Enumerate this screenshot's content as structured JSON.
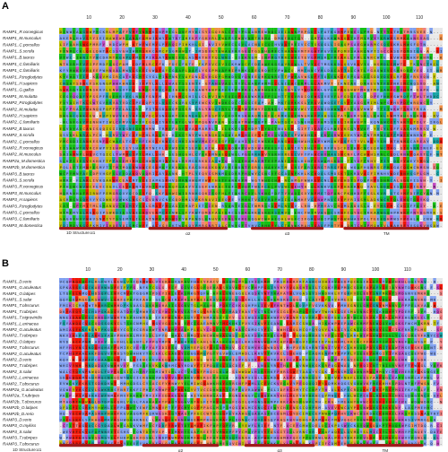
{
  "panels": [
    {
      "id": "A",
      "letter": "A",
      "ticks": [
        "10",
        "20",
        "30",
        "40",
        "50",
        "60",
        "70",
        "80",
        "90",
        "100",
        "110"
      ],
      "rows": [
        "RAMP1_R.norvegicus",
        "RAMP1_M.musculus",
        "RAMP1_C.porcellus",
        "RAMP1_S.scrofa",
        "RAMP1_B.taurus",
        "RAMP1_C.familiaris",
        "RAMP1_C.familiaris",
        "RAMP1_P.troglodytes",
        "RAMP1_H.sapiens",
        "RAMP1_G.gallus",
        "RAMP1_M.mulatta",
        "RAMP2_P.troglodytes",
        "RAMP2_M.mulatta",
        "RAMP2_H.sapiens",
        "RAMP2_C.familiaris",
        "RAMP2_B.taurus",
        "RAMP2_S.scrofa",
        "RAMP2_C.porcellus",
        "RAMP2_R.norvegicus",
        "RAMP2_M.musculus",
        "RAMP2a_M.domestica",
        "RAMP2b_M.domestica",
        "RAMP3_B.taurus",
        "RAMP3_S.scrofa",
        "RAMP3_R.norvegicus",
        "RAMP3_M.musculus",
        "RAMP3_H.sapiens",
        "RAMP3_P.troglodytes",
        "RAMP3_C.porcellus",
        "RAMP3_C.familiaris",
        "RAMP3_M.domestica"
      ],
      "structure_label": "1D Structure:α1",
      "segments": [
        "α2",
        "α3",
        "TM"
      ]
    },
    {
      "id": "B",
      "letter": "B",
      "ticks": [
        "10",
        "20",
        "30",
        "40",
        "50",
        "60",
        "70",
        "80",
        "90",
        "100",
        "110"
      ],
      "rows": [
        "RAMP1_D.rerio",
        "RAMP1_G.aculeatus",
        "RAMP1_O.latipes",
        "RAMP1_S.salar",
        "RAMP1_T.obscurus",
        "RAMP1_T.rubripes",
        "RAMP1_T.nigroviridis",
        "RAMP1_L.erinacea",
        "RAMP2_G.aculeatus",
        "RAMP2_T.rubripes",
        "RAMP2_O.latipes",
        "RAMP2_T.obscurus",
        "RAMP2_G.aculeatus",
        "RAMP2_D.rerio",
        "RAMP2_T.rubripes",
        "RAMP2_S.salar",
        "RAMP2_L.erinacea",
        "RAMP2_T.obscurus",
        "RAMP2a_G.aculeatus",
        "RAMP2a_T.rubripes",
        "RAMP2b_T.obscurus",
        "RAMP2b_O.latipes",
        "RAMP2b_D.rerio",
        "RAMP3_D.rerio",
        "RAMP3_O.mykiss",
        "RAMP3_S.salar",
        "RAMP3_T.rubripes",
        "RAMP3_T.obscurus"
      ],
      "structure_label": "1D Structure:α1",
      "segments": [
        "α2",
        "α3",
        "TM"
      ]
    }
  ],
  "colors": {
    "hydrophobic": "#80a0f0",
    "polar": "#15c015",
    "positive": "#f01505",
    "negative": "#c048c0",
    "cysteine": "#f08080",
    "glycine": "#f09048",
    "proline": "#c0c000",
    "aromatic": "#15a4a4",
    "structure_bar": "#a01c1c"
  }
}
